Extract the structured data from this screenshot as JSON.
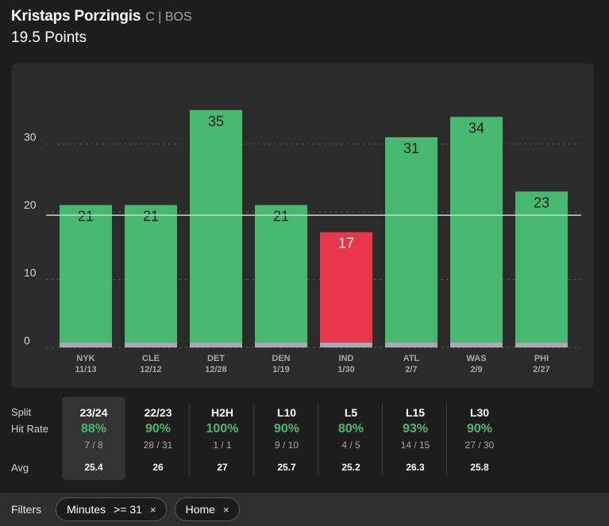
{
  "header": {
    "player_name": "Kristaps Porzingis",
    "player_meta": "C | BOS",
    "prop": "19.5 Points"
  },
  "chart_data": {
    "type": "bar",
    "title": "Kristaps Porzingis 19.5 Points",
    "categories": [
      "NYK",
      "CLE",
      "DET",
      "DEN",
      "IND",
      "ATL",
      "WAS",
      "PHI"
    ],
    "dates": [
      "11/13",
      "12/12",
      "12/28",
      "1/19",
      "1/30",
      "2/7",
      "2/9",
      "2/27"
    ],
    "values": [
      21,
      21,
      35,
      21,
      17,
      31,
      34,
      23
    ],
    "line": 19.5,
    "yticks": [
      0,
      10,
      20,
      30
    ],
    "ylim": [
      0,
      37
    ],
    "xlabel": "",
    "ylabel": "",
    "colors": {
      "over": "#46b86f",
      "under": "#e8374a",
      "base": "#a9a9b3",
      "line": "#cfcfcf",
      "grid": "#555555"
    }
  },
  "stats": {
    "labels": {
      "split": "Split",
      "hit_rate": "Hit Rate",
      "avg": "Avg"
    },
    "splits": [
      {
        "name": "23/24",
        "rate": "88%",
        "frac": "7 / 8",
        "avg": "25.4"
      },
      {
        "name": "22/23",
        "rate": "90%",
        "frac": "28 / 31",
        "avg": "26"
      },
      {
        "name": "H2H",
        "rate": "100%",
        "frac": "1 / 1",
        "avg": "27"
      },
      {
        "name": "L10",
        "rate": "90%",
        "frac": "9 / 10",
        "avg": "25.7"
      },
      {
        "name": "L5",
        "rate": "80%",
        "frac": "4 / 5",
        "avg": "25.2"
      },
      {
        "name": "L15",
        "rate": "93%",
        "frac": "14 / 15",
        "avg": "26.3"
      },
      {
        "name": "L30",
        "rate": "90%",
        "frac": "27 / 30",
        "avg": "25.8"
      }
    ]
  },
  "filters": {
    "label": "Filters",
    "chips": [
      {
        "name": "Minutes",
        "value": ">= 31",
        "close": "×"
      },
      {
        "name": "Home",
        "value": "",
        "close": "×"
      }
    ]
  }
}
